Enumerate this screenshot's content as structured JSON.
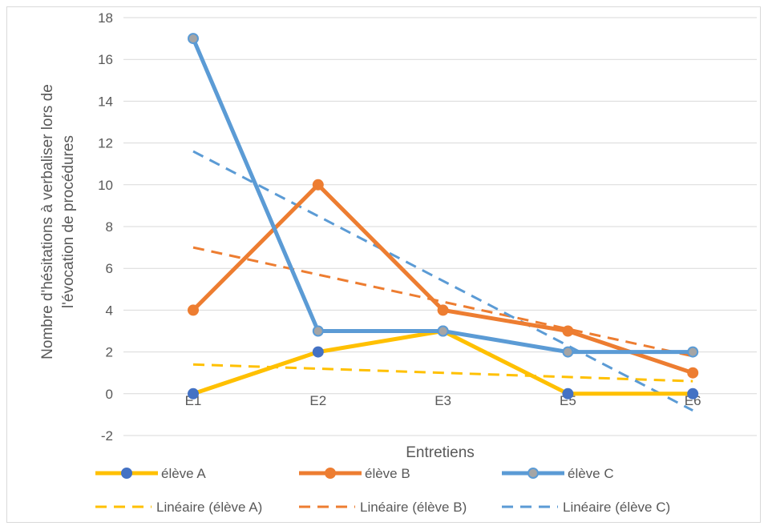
{
  "chart_data": {
    "type": "line",
    "title": "",
    "xlabel": "Entretiens",
    "ylabel_lines": [
      "Nombre d'hésitations à verbaliser lors de",
      "l'évocation de procédures"
    ],
    "categories": [
      "E1",
      "E2",
      "E3",
      "E5",
      "E6"
    ],
    "ylim": [
      -2,
      18
    ],
    "yticks": [
      "-2",
      "0",
      "2",
      "4",
      "6",
      "8",
      "10",
      "12",
      "14",
      "16",
      "18"
    ],
    "grid": true,
    "legend_position": "bottom",
    "series": [
      {
        "name": "élève A",
        "values": [
          0,
          2,
          3,
          0,
          0
        ],
        "color": "#ffc000",
        "marker_fill": "#4472c4",
        "marker_stroke": "#4472c4"
      },
      {
        "name": "élève B",
        "values": [
          4,
          10,
          4,
          3,
          1
        ],
        "color": "#ed7d31",
        "marker_fill": "#ed7d31",
        "marker_stroke": "#ed7d31"
      },
      {
        "name": "élève C",
        "values": [
          17,
          3,
          3,
          2,
          2
        ],
        "color": "#5b9bd5",
        "marker_fill": "#a5a5a5",
        "marker_stroke": "#5b9bd5"
      }
    ],
    "trendlines": [
      {
        "name": "Linéaire (élève A)",
        "start": 1.4,
        "end": 0.6,
        "color": "#ffc000"
      },
      {
        "name": "Linéaire (élève B)",
        "start": 7.0,
        "end": 1.8,
        "color": "#ed7d31"
      },
      {
        "name": "Linéaire (élève C)",
        "start": 11.6,
        "end": -0.8,
        "color": "#5b9bd5"
      }
    ]
  }
}
